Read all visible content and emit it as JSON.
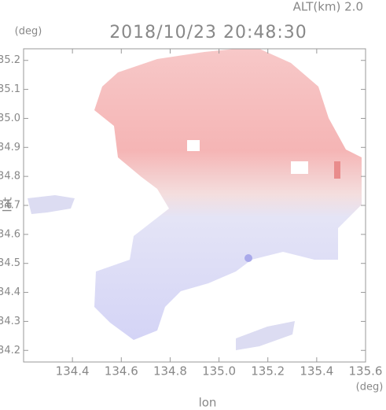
{
  "chart_data": {
    "type": "map",
    "title": "2018/10/23 20:48:30",
    "subtitle": "ALT(km) 2.0",
    "x_label": "lon",
    "y_label": "lat",
    "x_unit": "(deg)",
    "y_unit": "(deg)",
    "xlim": [
      134.2,
      135.6
    ],
    "ylim": [
      34.16,
      35.24
    ],
    "xticks": [
      {
        "value": 134.4,
        "label": "134.4"
      },
      {
        "value": 134.6,
        "label": "134.6"
      },
      {
        "value": 134.8,
        "label": "134.8"
      },
      {
        "value": 135.0,
        "label": "135.0"
      },
      {
        "value": 135.2,
        "label": "135.2"
      },
      {
        "value": 135.4,
        "label": "135.4"
      },
      {
        "value": 135.6,
        "label": "135.6"
      }
    ],
    "yticks": [
      {
        "value": 34.2,
        "label": "34.2"
      },
      {
        "value": 34.3,
        "label": "34.3"
      },
      {
        "value": 34.4,
        "label": "34.4"
      },
      {
        "value": 34.5,
        "label": "34.5"
      },
      {
        "value": 34.6,
        "label": "34.6"
      },
      {
        "value": 34.7,
        "label": "34.7"
      },
      {
        "value": 34.8,
        "label": "34.8"
      },
      {
        "value": 34.9,
        "label": "34.9"
      },
      {
        "value": 35.0,
        "label": "35.0"
      },
      {
        "value": 35.1,
        "label": "35.1"
      },
      {
        "value": 35.2,
        "label": "35.2"
      }
    ],
    "axis_color": "#999999"
  }
}
